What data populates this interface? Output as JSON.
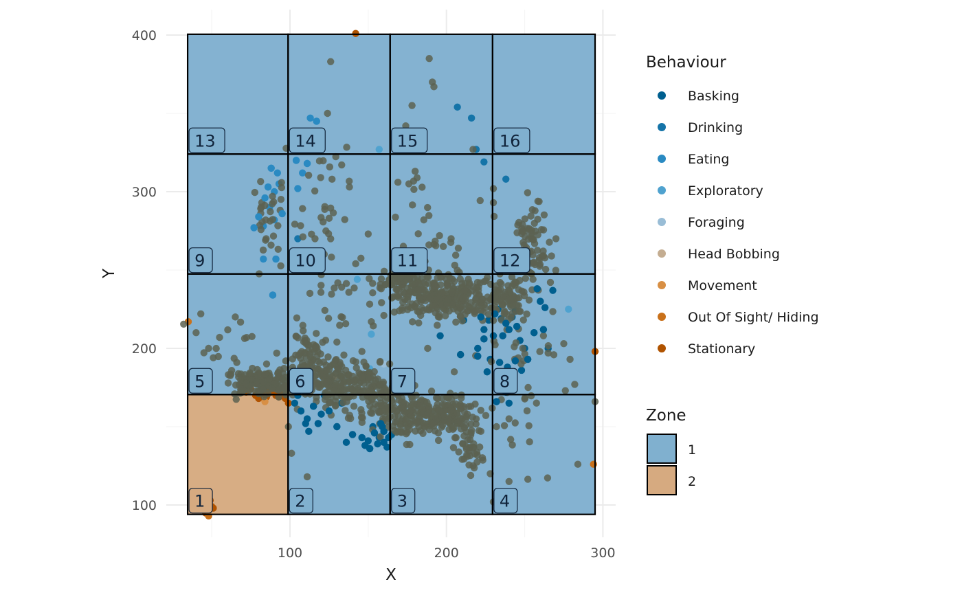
{
  "chart_data": {
    "type": "scatter",
    "xlabel": "X",
    "ylabel": "Y",
    "xlim": [
      30,
      305
    ],
    "ylim": [
      82,
      405
    ],
    "x_ticks": [
      100,
      200,
      300
    ],
    "x_minor_ticks": [
      50,
      150,
      250
    ],
    "y_ticks": [
      100,
      200,
      300,
      400
    ],
    "y_minor_ticks": [
      150,
      250,
      350
    ],
    "grid": true,
    "colors": {
      "zone_1": "#80b0cf",
      "zone_2": "#d6aa80",
      "grid_major": "#ebebeb",
      "grid_minor": "#f5f5f5",
      "cell_border": "#000000"
    },
    "zone_cells": [
      {
        "label": "1",
        "zone": 2,
        "x": [
          34.6,
          98.8
        ],
        "y": [
          94,
          170.5
        ]
      },
      {
        "label": "2",
        "zone": 1,
        "x": [
          98.8,
          164
        ],
        "y": [
          94,
          170.5
        ]
      },
      {
        "label": "3",
        "zone": 1,
        "x": [
          164,
          229.5
        ],
        "y": [
          94,
          170.5
        ]
      },
      {
        "label": "4",
        "zone": 1,
        "x": [
          229.5,
          295
        ],
        "y": [
          94,
          170.5
        ]
      },
      {
        "label": "5",
        "zone": 1,
        "x": [
          34.6,
          98.8
        ],
        "y": [
          170.5,
          247.5
        ]
      },
      {
        "label": "6",
        "zone": 1,
        "x": [
          98.8,
          164
        ],
        "y": [
          170.5,
          247.5
        ]
      },
      {
        "label": "7",
        "zone": 1,
        "x": [
          164,
          229.5
        ],
        "y": [
          170.5,
          247.5
        ]
      },
      {
        "label": "8",
        "zone": 1,
        "x": [
          229.5,
          295
        ],
        "y": [
          170.5,
          247.5
        ]
      },
      {
        "label": "9",
        "zone": 1,
        "x": [
          34.6,
          98.8
        ],
        "y": [
          247.5,
          324
        ]
      },
      {
        "label": "10",
        "zone": 1,
        "x": [
          98.8,
          164
        ],
        "y": [
          247.5,
          324
        ]
      },
      {
        "label": "11",
        "zone": 1,
        "x": [
          164,
          229.5
        ],
        "y": [
          247.5,
          324
        ]
      },
      {
        "label": "12",
        "zone": 1,
        "x": [
          229.5,
          295
        ],
        "y": [
          247.5,
          324
        ]
      },
      {
        "label": "13",
        "zone": 1,
        "x": [
          34.6,
          98.8
        ],
        "y": [
          324,
          400.5
        ]
      },
      {
        "label": "14",
        "zone": 1,
        "x": [
          98.8,
          164
        ],
        "y": [
          324,
          400.5
        ]
      },
      {
        "label": "15",
        "zone": 1,
        "x": [
          164,
          229.5
        ],
        "y": [
          324,
          400.5
        ]
      },
      {
        "label": "16",
        "zone": 1,
        "x": [
          229.5,
          295
        ],
        "y": [
          324,
          400.5
        ]
      }
    ],
    "behaviours": [
      {
        "name": "Basking",
        "color": "#005f8f"
      },
      {
        "name": "Drinking",
        "color": "#1574a8"
      },
      {
        "name": "Eating",
        "color": "#2a8ac2"
      },
      {
        "name": "Exploratory",
        "color": "#4fa2cf"
      },
      {
        "name": "Foraging",
        "color": "#99bdd6"
      },
      {
        "name": "Head Bobbing",
        "color": "#c4ad91"
      },
      {
        "name": "Movement",
        "color": "#d88f44"
      },
      {
        "name": "Out Of Sight/ Hiding",
        "color": "#c9711b"
      },
      {
        "name": "Stationary",
        "color": "#b05300"
      }
    ],
    "points_overlay_color": "#5c6151",
    "series": [
      {
        "name": "Stationary",
        "color": "#b05300",
        "points": [
          [
            72,
            172
          ],
          [
            78,
            170
          ],
          [
            82,
            171
          ],
          [
            85,
            169
          ],
          [
            88,
            172
          ],
          [
            91,
            170
          ],
          [
            94,
            171
          ],
          [
            97,
            168
          ],
          [
            99,
            165
          ],
          [
            75,
            174
          ],
          [
            80,
            168
          ],
          [
            86,
            173
          ],
          [
            93,
            169
          ],
          [
            48,
            101
          ],
          [
            50,
            99
          ],
          [
            47,
            97
          ],
          [
            49,
            103
          ],
          [
            46,
            95
          ],
          [
            51,
            98
          ],
          [
            295,
            198
          ],
          [
            142,
            401
          ]
        ]
      },
      {
        "name": "Out Of Sight/ Hiding",
        "color": "#c9711b",
        "points": [
          [
            35,
            217
          ],
          [
            294,
            126
          ],
          [
            48,
            93
          ]
        ]
      },
      {
        "name": "Movement",
        "color": "#d88f44",
        "points": [
          [
            70,
            175
          ],
          [
            84,
            166
          ]
        ]
      },
      {
        "name": "Head Bobbing",
        "color": "#c4ad91",
        "points": [
          [
            90,
            178
          ],
          [
            128,
            182
          ]
        ]
      },
      {
        "name": "Foraging",
        "color": "#99bdd6",
        "points": [
          [
            160,
            190
          ],
          [
            146,
            156
          ]
        ]
      },
      {
        "name": "Exploratory",
        "color": "#4fa2cf",
        "points": [
          [
            157,
            327
          ],
          [
            278,
            225
          ],
          [
            152,
            209
          ],
          [
            143,
            244
          ],
          [
            97,
            180
          ],
          [
            151,
            187
          ]
        ]
      },
      {
        "name": "Eating",
        "color": "#2a8ac2",
        "points": [
          [
            88,
            315
          ],
          [
            90,
            300
          ],
          [
            84,
            296
          ],
          [
            87,
            290
          ],
          [
            80,
            284
          ],
          [
            83,
            278
          ],
          [
            77,
            277
          ],
          [
            93,
            305
          ],
          [
            86,
            303
          ],
          [
            90,
            282
          ],
          [
            95,
            286
          ],
          [
            92,
            312
          ],
          [
            104,
            320
          ],
          [
            108,
            312
          ],
          [
            111,
            318
          ],
          [
            113,
            347
          ],
          [
            117,
            345
          ],
          [
            105,
            302
          ],
          [
            91,
            257
          ],
          [
            83,
            257
          ],
          [
            89,
            234
          ]
        ]
      },
      {
        "name": "Drinking",
        "color": "#1574a8",
        "points": [
          [
            207,
            354
          ],
          [
            216,
            347
          ],
          [
            219,
            327
          ],
          [
            224,
            319
          ],
          [
            238,
            308
          ],
          [
            105,
            270
          ]
        ]
      },
      {
        "name": "Basking",
        "color": "#005f8f",
        "points": [
          [
            146,
            143
          ],
          [
            150,
            141
          ],
          [
            154,
            146
          ],
          [
            157,
            143
          ],
          [
            160,
            147
          ],
          [
            163,
            143
          ],
          [
            148,
            138
          ],
          [
            156,
            139
          ],
          [
            160,
            140
          ],
          [
            153,
            150
          ],
          [
            158,
            152
          ],
          [
            165,
            145
          ],
          [
            151,
            136
          ],
          [
            162,
            137
          ],
          [
            159,
            150
          ],
          [
            103,
            165
          ],
          [
            107,
            160
          ],
          [
            111,
            155
          ],
          [
            115,
            163
          ],
          [
            120,
            158
          ],
          [
            125,
            160
          ],
          [
            110,
            152
          ],
          [
            118,
            152
          ],
          [
            112,
            147
          ],
          [
            130,
            150
          ],
          [
            136,
            140
          ],
          [
            105,
            170
          ],
          [
            122,
            170
          ],
          [
            140,
            145
          ],
          [
            133,
            165
          ],
          [
            222,
            220
          ],
          [
            227,
            218
          ],
          [
            231,
            222
          ],
          [
            235,
            219
          ],
          [
            238,
            216
          ],
          [
            242,
            220
          ],
          [
            245,
            214
          ],
          [
            224,
            212
          ],
          [
            230,
            208
          ],
          [
            233,
            225
          ],
          [
            240,
            212
          ],
          [
            244,
            224
          ],
          [
            236,
            208
          ],
          [
            228,
            193
          ],
          [
            234,
            191
          ],
          [
            239,
            188
          ],
          [
            244,
            192
          ],
          [
            248,
            186
          ],
          [
            252,
            193
          ],
          [
            242,
            180
          ],
          [
            238,
            172
          ],
          [
            240,
            165
          ],
          [
            232,
            166
          ],
          [
            250,
            200
          ],
          [
            256,
            210
          ],
          [
            247,
            205
          ],
          [
            226,
            185
          ],
          [
            220,
            200
          ],
          [
            260,
            230
          ],
          [
            263,
            226
          ],
          [
            258,
            238
          ],
          [
            268,
            237
          ],
          [
            224,
            206
          ],
          [
            211,
            218
          ],
          [
            209,
            196
          ],
          [
            196,
            208
          ],
          [
            220,
            195
          ],
          [
            265,
            200
          ],
          [
            262,
            212
          ]
        ]
      }
    ],
    "overlay_clusters": [
      {
        "cx": 195,
        "cy": 233,
        "sx": 18,
        "sy": 8,
        "n": 240
      },
      {
        "cx": 175,
        "cy": 245,
        "sx": 10,
        "sy": 5,
        "n": 70
      },
      {
        "cx": 235,
        "cy": 232,
        "sx": 9,
        "sy": 8,
        "n": 90
      },
      {
        "cx": 255,
        "cy": 265,
        "sx": 9,
        "sy": 18,
        "n": 80
      },
      {
        "cx": 120,
        "cy": 180,
        "sx": 20,
        "sy": 9,
        "n": 210
      },
      {
        "cx": 80,
        "cy": 178,
        "sx": 12,
        "sy": 5,
        "n": 130
      },
      {
        "cx": 180,
        "cy": 158,
        "sx": 15,
        "sy": 9,
        "n": 170
      },
      {
        "cx": 203,
        "cy": 158,
        "sx": 9,
        "sy": 8,
        "n": 90
      },
      {
        "cx": 215,
        "cy": 140,
        "sx": 5,
        "sy": 12,
        "n": 40
      },
      {
        "cx": 150,
        "cy": 170,
        "sx": 16,
        "sy": 10,
        "n": 110
      },
      {
        "cx": 112,
        "cy": 200,
        "sx": 6,
        "sy": 8,
        "n": 40
      },
      {
        "cx": 133,
        "cy": 235,
        "sx": 15,
        "sy": 20,
        "n": 25
      },
      {
        "cx": 118,
        "cy": 292,
        "sx": 12,
        "sy": 25,
        "n": 28
      },
      {
        "cx": 88,
        "cy": 288,
        "sx": 6,
        "sy": 20,
        "n": 30
      },
      {
        "cx": 190,
        "cy": 275,
        "sx": 20,
        "sy": 25,
        "n": 25
      },
      {
        "cx": 248,
        "cy": 200,
        "sx": 15,
        "sy": 25,
        "n": 30
      },
      {
        "cx": 245,
        "cy": 150,
        "sx": 20,
        "sy": 25,
        "n": 14
      },
      {
        "cx": 60,
        "cy": 200,
        "sx": 15,
        "sy": 15,
        "n": 12
      }
    ],
    "overlay_points": [
      [
        126,
        383
      ],
      [
        124,
        350
      ],
      [
        189,
        385
      ],
      [
        191,
        370
      ],
      [
        192,
        367
      ],
      [
        178,
        355
      ],
      [
        174,
        342
      ],
      [
        176,
        305
      ],
      [
        180,
        313
      ],
      [
        217,
        327
      ],
      [
        230,
        302
      ],
      [
        125,
        283
      ],
      [
        138,
        303
      ],
      [
        150,
        273
      ],
      [
        230,
        293
      ],
      [
        120,
        247
      ],
      [
        142,
        254
      ],
      [
        130,
        204
      ],
      [
        146,
        198
      ],
      [
        152,
        217
      ],
      [
        169,
        306
      ],
      [
        178,
        330
      ],
      [
        101,
        133
      ],
      [
        111,
        118
      ],
      [
        262,
        208
      ],
      [
        275,
        203
      ],
      [
        282,
        177
      ],
      [
        279,
        193
      ],
      [
        295,
        166
      ],
      [
        284,
        126
      ],
      [
        276,
        173
      ],
      [
        240,
        115
      ],
      [
        230,
        102
      ],
      [
        240,
        155
      ],
      [
        265,
        197
      ],
      [
        99,
        150
      ],
      [
        43,
        222
      ],
      [
        40,
        210
      ],
      [
        55,
        207
      ],
      [
        48,
        200
      ],
      [
        51,
        194
      ],
      [
        66,
        191
      ],
      [
        117,
        255
      ],
      [
        228,
        120
      ],
      [
        217,
        125
      ],
      [
        222,
        147
      ],
      [
        232,
        150
      ],
      [
        205,
        185
      ],
      [
        188,
        200
      ],
      [
        160,
        221
      ],
      [
        116,
        270
      ],
      [
        113,
        260
      ],
      [
        270,
        270
      ],
      [
        262,
        259
      ],
      [
        234,
        256
      ],
      [
        203,
        270
      ],
      [
        198,
        265
      ]
    ],
    "legend_behaviour": {
      "title": "Behaviour",
      "entries": [
        "Basking",
        "Drinking",
        "Eating",
        "Exploratory",
        "Foraging",
        "Head Bobbing",
        "Movement",
        "Out Of Sight/ Hiding",
        "Stationary"
      ]
    },
    "legend_zone": {
      "title": "Zone",
      "entries": [
        "1",
        "2"
      ]
    }
  }
}
